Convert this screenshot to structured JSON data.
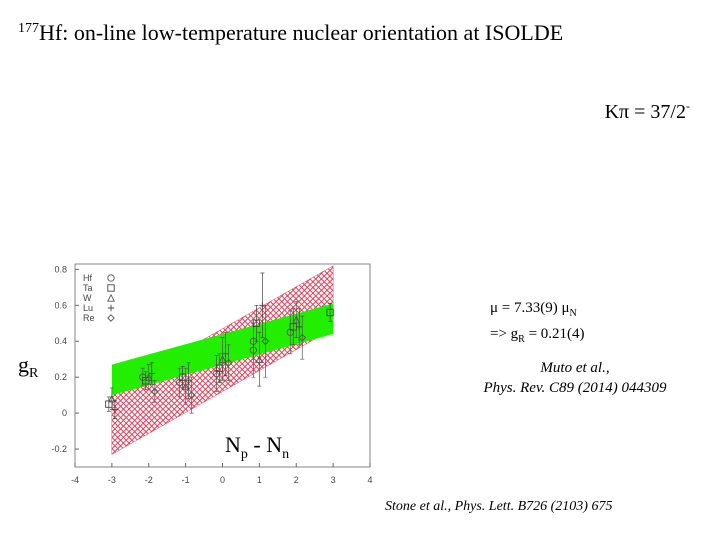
{
  "slide": {
    "title": {
      "sup": "177",
      "main": "Hf: on-line low-temperature nuclear orientation at ISOLDE"
    },
    "spin": {
      "main": "Kπ = 37/2",
      "sup": "-"
    },
    "moment": {
      "line1": "μ = 7.33(9) μ",
      "line1_sub": "N",
      "line2": "=> g",
      "line2_sub": "R",
      "line2_rest": " = 0.21(4)"
    },
    "ref1": [
      "Muto et al.,",
      "Phys. Rev. C89 (2014) 044309"
    ],
    "ref2": "Stone et al., Phys. Lett. B726 (2103) 675"
  },
  "chart_data": {
    "type": "scatter",
    "ylabel": {
      "main": "g",
      "sub": "R"
    },
    "xlabel": [
      "N",
      "p",
      " - N",
      "n"
    ],
    "xlim": [
      -4,
      4
    ],
    "ylim": [
      -0.3,
      0.83
    ],
    "xticks": [
      -4,
      -3,
      -2,
      -1,
      0,
      1,
      2,
      3,
      4
    ],
    "yticks": [
      -0.2,
      0,
      0.2,
      0.4,
      0.6,
      0.8
    ],
    "bands": [
      {
        "color": "#d9425a",
        "hatch": true,
        "x": [
          -3,
          3
        ],
        "lower": [
          -0.23,
          0.47
        ],
        "upper": [
          0.12,
          0.82
        ]
      },
      {
        "color": "#22ee00",
        "hatch": false,
        "x": [
          -3,
          3
        ],
        "lower": [
          0.1,
          0.44
        ],
        "upper": [
          0.27,
          0.61
        ]
      }
    ],
    "series": [
      {
        "name": "Hf",
        "marker": "circle",
        "color": "#555555",
        "x": [
          -2,
          -1,
          0,
          1,
          1,
          2
        ],
        "values": [
          0.2,
          0.17,
          0.22,
          0.35,
          0.4,
          0.45
        ],
        "errors": [
          0.05,
          0.08,
          0.1,
          0.15,
          0.1,
          0.12
        ]
      },
      {
        "name": "Ta",
        "marker": "square",
        "color": "#444444",
        "x": [
          -3,
          -2,
          -1,
          0,
          1,
          2,
          3
        ],
        "values": [
          0.05,
          0.18,
          0.2,
          0.25,
          0.5,
          0.48,
          0.56
        ],
        "errors": [
          0.04,
          0.05,
          0.06,
          0.08,
          0.1,
          0.1,
          0.05
        ]
      },
      {
        "name": "W",
        "marker": "triangle",
        "color": "#555555",
        "x": [
          -3,
          -2,
          -1,
          0,
          1,
          2
        ],
        "values": [
          0.08,
          0.2,
          0.15,
          0.3,
          0.3,
          0.52
        ],
        "errors": [
          0.06,
          0.07,
          0.1,
          0.12,
          0.15,
          0.1
        ]
      },
      {
        "name": "Lu",
        "marker": "plus",
        "color": "#444444",
        "x": [
          -3,
          -2,
          -1,
          0,
          1,
          2
        ],
        "values": [
          0.02,
          0.22,
          0.18,
          0.33,
          0.6,
          0.48
        ],
        "errors": [
          0.05,
          0.06,
          0.1,
          0.12,
          0.18,
          0.1
        ]
      },
      {
        "name": "Re",
        "marker": "diamond",
        "color": "#555555",
        "x": [
          -2,
          -1,
          0,
          1,
          2
        ],
        "values": [
          0.12,
          0.1,
          0.28,
          0.4,
          0.42
        ],
        "errors": [
          0.06,
          0.1,
          0.1,
          0.2,
          0.12
        ]
      }
    ]
  }
}
